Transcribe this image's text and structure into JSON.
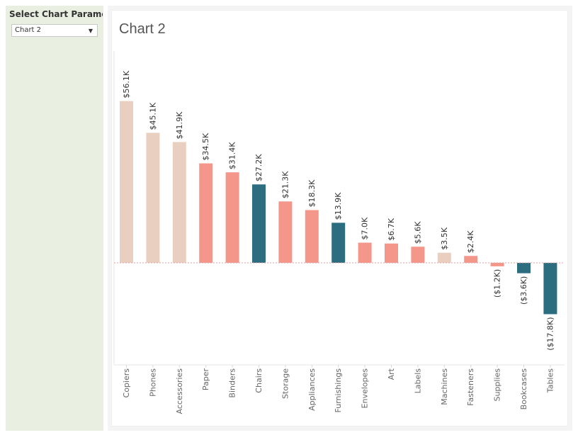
{
  "sidebar": {
    "param_label": "Select Chart Paramet..",
    "selected": "Chart 2",
    "caret_icon": "chevron-down-icon"
  },
  "colors": {
    "beige": "#e8cfc0",
    "salmon": "#f4978a",
    "teal": "#2c6e7f"
  },
  "chart_data": {
    "type": "bar",
    "title": "Chart 2",
    "categories": [
      "Copiers",
      "Phones",
      "Accessories",
      "Paper",
      "Binders",
      "Chairs",
      "Storage",
      "Appliances",
      "Furnishings",
      "Envelopes",
      "Art",
      "Labels",
      "Machines",
      "Fasteners",
      "Supplies",
      "Bookcases",
      "Tables"
    ],
    "values": [
      56.1,
      45.1,
      41.9,
      34.5,
      31.4,
      27.2,
      21.3,
      18.3,
      13.9,
      7.0,
      6.7,
      5.6,
      3.5,
      2.4,
      -1.2,
      -3.6,
      -17.8
    ],
    "labels": [
      "$56.1K",
      "$45.1K",
      "$41.9K",
      "$34.5K",
      "$31.4K",
      "$27.2K",
      "$21.3K",
      "$18.3K",
      "$13.9K",
      "$7.0K",
      "$6.7K",
      "$5.6K",
      "$3.5K",
      "$2.4K",
      "($1.2K)",
      "($3.6K)",
      "($17.8K)"
    ],
    "color_group": [
      "beige",
      "beige",
      "beige",
      "salmon",
      "salmon",
      "teal",
      "salmon",
      "salmon",
      "teal",
      "salmon",
      "salmon",
      "salmon",
      "beige",
      "salmon",
      "salmon",
      "teal",
      "teal"
    ],
    "unit": "K",
    "ylim": [
      -35,
      75
    ],
    "grid": false,
    "zero_line": true
  }
}
